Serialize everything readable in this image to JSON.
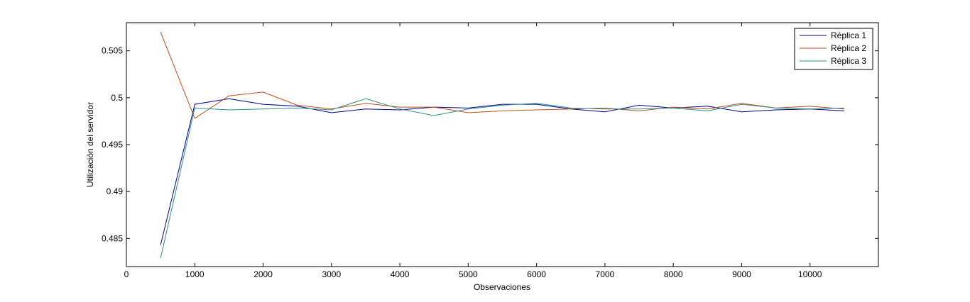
{
  "chart_data": {
    "type": "line",
    "xlabel": "Observaciones",
    "ylabel": "Utilización del servidor",
    "xlim": [
      0,
      11000
    ],
    "ylim": [
      0.482,
      0.508
    ],
    "xticks": [
      0,
      1000,
      2000,
      3000,
      4000,
      5000,
      6000,
      7000,
      8000,
      9000,
      10000
    ],
    "xtick_labels": [
      "0",
      "1000",
      "2000",
      "3000",
      "4000",
      "5000",
      "6000",
      "7000",
      "8000",
      "9000",
      "10000"
    ],
    "yticks": [
      0.485,
      0.49,
      0.495,
      0.5,
      0.505
    ],
    "ytick_labels": [
      "0.485",
      "0.49",
      "0.495",
      "0.5",
      "0.505"
    ],
    "grid": false,
    "legend_position": "top-right",
    "x": [
      500,
      1000,
      1500,
      2000,
      2500,
      3000,
      3500,
      4000,
      4500,
      5000,
      5500,
      6000,
      6500,
      7000,
      7500,
      8000,
      8500,
      9000,
      9500,
      10000,
      10500
    ],
    "series": [
      {
        "name": "Réplica 1",
        "color": "#00008B",
        "values": [
          0.4843,
          0.4993,
          0.4999,
          0.4993,
          0.4991,
          0.4984,
          0.4988,
          0.4987,
          0.499,
          0.4989,
          0.4993,
          0.4993,
          0.4988,
          0.4985,
          0.4992,
          0.4989,
          0.4991,
          0.4985,
          0.4987,
          0.4988,
          0.4986
        ]
      },
      {
        "name": "Réplica 2",
        "color": "#C24B1A",
        "values": [
          0.507,
          0.4978,
          0.5002,
          0.5006,
          0.4992,
          0.4988,
          0.4994,
          0.499,
          0.499,
          0.4984,
          0.4986,
          0.4987,
          0.4988,
          0.4989,
          0.4986,
          0.499,
          0.4988,
          0.4994,
          0.4989,
          0.4991,
          0.4988
        ]
      },
      {
        "name": "Réplica 3",
        "color": "#2A8E8A",
        "values": [
          0.4829,
          0.4989,
          0.4987,
          0.4988,
          0.4989,
          0.4987,
          0.4999,
          0.4988,
          0.4981,
          0.4988,
          0.4992,
          0.4994,
          0.4989,
          0.4988,
          0.4988,
          0.4989,
          0.4986,
          0.4993,
          0.4989,
          0.4988,
          0.4989
        ]
      }
    ]
  }
}
